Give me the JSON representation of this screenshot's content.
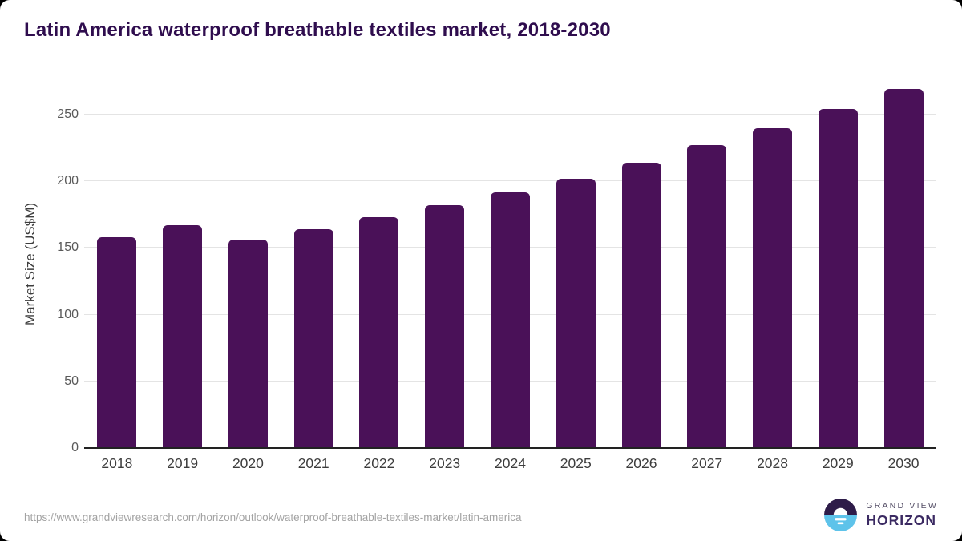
{
  "chart_data": {
    "type": "bar",
    "title": "Latin America waterproof breathable textiles market, 2018-2030",
    "categories": [
      "2018",
      "2019",
      "2020",
      "2021",
      "2022",
      "2023",
      "2024",
      "2025",
      "2026",
      "2027",
      "2028",
      "2029",
      "2030"
    ],
    "values": [
      158,
      167,
      156,
      164,
      173,
      182,
      192,
      202,
      214,
      227,
      240,
      254,
      269
    ],
    "xlabel": "",
    "ylabel": "Market Size (US$M)",
    "ylim": [
      0,
      250
    ],
    "yticks": [
      0,
      50,
      100,
      150,
      200,
      250
    ],
    "grid": true,
    "legend_position": "none",
    "bar_color": "#4a1158",
    "title_color": "#2f0d4e",
    "gridline_color": "#e4e4e4",
    "axis_line_color": "#222222"
  },
  "footer": {
    "source_url": "https://www.grandviewresearch.com/horizon/outlook/waterproof-breathable-textiles-market/latin-america",
    "logo": {
      "line1": "GRAND VIEW",
      "line2": "HORIZON",
      "dark_color": "#2e1c49",
      "blue_color": "#5ec3ea"
    }
  }
}
